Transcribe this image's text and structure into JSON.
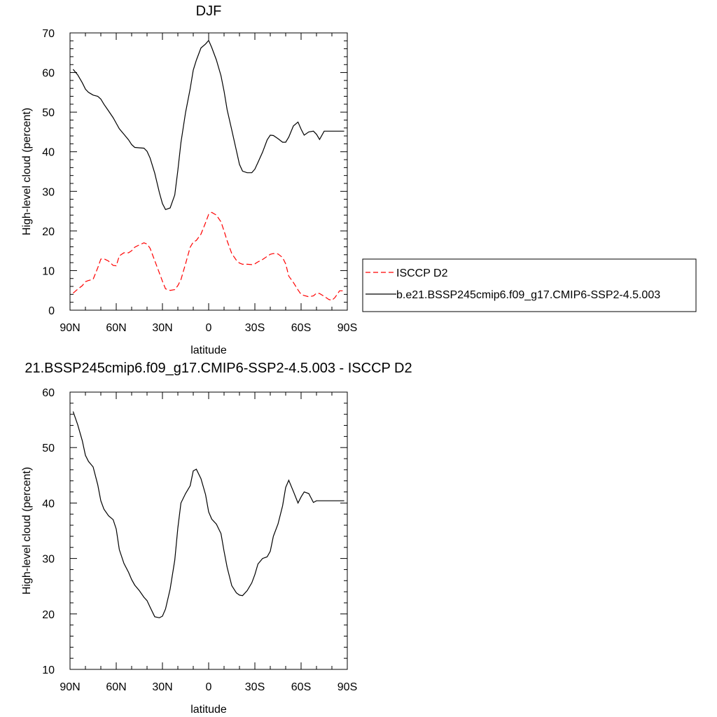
{
  "chart_data": [
    {
      "type": "line",
      "title": "DJF",
      "xlabel": "latitude",
      "ylabel": "High-level cloud (percent)",
      "xlim": [
        -90,
        90
      ],
      "ylim": [
        0,
        70
      ],
      "x_direction": "north-to-south",
      "xticks": [
        {
          "value": -90,
          "label": "90N"
        },
        {
          "value": -60,
          "label": "60N"
        },
        {
          "value": -30,
          "label": "30N"
        },
        {
          "value": 0,
          "label": "0"
        },
        {
          "value": 30,
          "label": "30S"
        },
        {
          "value": 60,
          "label": "60S"
        },
        {
          "value": 90,
          "label": "90S"
        }
      ],
      "yticks": [
        0,
        10,
        20,
        30,
        40,
        50,
        60,
        70
      ],
      "legend_position": "right",
      "series": [
        {
          "name": "ISCCP D2",
          "color": "#ff0000",
          "dash": "dashed",
          "x": [
            -88,
            -85,
            -82,
            -80,
            -78,
            -75,
            -72,
            -70,
            -68,
            -65,
            -62,
            -60,
            -58,
            -55,
            -52,
            -50,
            -48,
            -45,
            -42,
            -40,
            -38,
            -35,
            -32,
            -30,
            -28,
            -25,
            -22,
            -20,
            -18,
            -15,
            -12,
            -10,
            -8,
            -5,
            -2,
            0,
            2,
            5,
            8,
            10,
            12,
            15,
            18,
            20,
            22,
            25,
            28,
            30,
            32,
            35,
            38,
            40,
            42,
            45,
            48,
            50,
            52,
            55,
            58,
            60,
            62,
            65,
            68,
            70,
            72,
            75,
            78,
            80,
            82,
            85,
            88
          ],
          "y": [
            4.3,
            5.3,
            6.2,
            7.2,
            7.5,
            7.8,
            10.7,
            12.9,
            13.0,
            12.4,
            11.3,
            11.2,
            13.7,
            14.5,
            14.5,
            15.0,
            15.9,
            16.5,
            17.0,
            16.7,
            15.6,
            12.5,
            9.4,
            7.3,
            5.4,
            5.0,
            5.2,
            6.2,
            7.7,
            11.7,
            15.9,
            17.2,
            17.6,
            19.2,
            22.1,
            24.2,
            24.7,
            24.0,
            22.3,
            20.0,
            17.5,
            14.3,
            12.6,
            11.9,
            11.6,
            11.6,
            11.5,
            11.7,
            12.2,
            12.8,
            13.6,
            14.1,
            14.3,
            14.2,
            13.3,
            11.7,
            8.6,
            7.0,
            5.1,
            4.0,
            3.7,
            3.4,
            3.6,
            4.3,
            4.2,
            3.5,
            2.7,
            2.5,
            3.2,
            4.9,
            4.9
          ]
        },
        {
          "name": "b.e21.BSSP245cmip6.f09_g17.CMIP6-SSP2-4.5.003",
          "color": "#000000",
          "dash": "solid",
          "x": [
            -88,
            -85,
            -82,
            -80,
            -78,
            -75,
            -72,
            -70,
            -68,
            -65,
            -62,
            -60,
            -58,
            -55,
            -52,
            -50,
            -48,
            -45,
            -42,
            -40,
            -38,
            -35,
            -32,
            -30,
            -28,
            -25,
            -22,
            -20,
            -18,
            -15,
            -12,
            -10,
            -8,
            -5,
            -2,
            0,
            2,
            5,
            8,
            10,
            12,
            15,
            18,
            20,
            22,
            25,
            28,
            30,
            32,
            35,
            38,
            40,
            42,
            45,
            48,
            50,
            52,
            55,
            58,
            60,
            62,
            65,
            68,
            70,
            72,
            75,
            78,
            80,
            82,
            85,
            88
          ],
          "y": [
            60.8,
            59.4,
            57.4,
            55.8,
            55.0,
            54.3,
            54.0,
            53.3,
            52.0,
            50.3,
            48.6,
            47.2,
            45.8,
            44.4,
            43.0,
            41.8,
            41.1,
            41.0,
            40.9,
            40.1,
            38.4,
            34.6,
            29.7,
            26.9,
            25.4,
            25.8,
            29.1,
            35.3,
            42.3,
            49.9,
            55.9,
            60.6,
            63.1,
            66.2,
            67.2,
            68.1,
            66.3,
            63.2,
            59.2,
            55.3,
            50.6,
            45.5,
            40.3,
            36.8,
            35.1,
            34.7,
            34.7,
            35.6,
            37.3,
            39.9,
            43.0,
            44.2,
            44.1,
            43.3,
            42.4,
            42.4,
            43.7,
            46.5,
            47.5,
            45.7,
            44.2,
            45.0,
            45.2,
            44.4,
            43.1,
            45.2,
            45.2,
            45.2,
            45.2,
            45.2,
            45.2
          ]
        }
      ]
    },
    {
      "type": "line",
      "title": "21.BSSP245cmip6.f09_g17.CMIP6-SSP2-4.5.003 - ISCCP D2",
      "xlabel": "latitude",
      "ylabel": "High-level cloud (percent)",
      "xlim": [
        -90,
        90
      ],
      "ylim": [
        10,
        60
      ],
      "x_direction": "north-to-south",
      "xticks": [
        {
          "value": -90,
          "label": "90N"
        },
        {
          "value": -60,
          "label": "60N"
        },
        {
          "value": -30,
          "label": "30N"
        },
        {
          "value": 0,
          "label": "0"
        },
        {
          "value": 30,
          "label": "30S"
        },
        {
          "value": 60,
          "label": "60S"
        },
        {
          "value": 90,
          "label": "90S"
        }
      ],
      "yticks": [
        10,
        20,
        30,
        40,
        50,
        60
      ],
      "series": [
        {
          "color": "#000000",
          "dash": "solid",
          "x": [
            -88,
            -85,
            -82,
            -80,
            -78,
            -75,
            -72,
            -70,
            -68,
            -65,
            -62,
            -60,
            -58,
            -55,
            -52,
            -50,
            -48,
            -45,
            -42,
            -40,
            -38,
            -35,
            -32,
            -30,
            -28,
            -25,
            -22,
            -20,
            -18,
            -15,
            -12,
            -10,
            -8,
            -5,
            -2,
            0,
            2,
            5,
            8,
            10,
            12,
            15,
            18,
            20,
            22,
            25,
            28,
            30,
            32,
            35,
            38,
            40,
            42,
            45,
            48,
            50,
            52,
            55,
            58,
            60,
            62,
            65,
            68,
            70,
            72,
            75,
            78,
            80,
            82,
            85,
            88
          ],
          "y": [
            56.5,
            54.1,
            51.2,
            48.6,
            47.5,
            46.5,
            43.3,
            40.4,
            38.9,
            37.7,
            37.0,
            35.3,
            31.6,
            29.1,
            27.5,
            26.2,
            25.2,
            24.2,
            23.0,
            22.4,
            21.2,
            19.5,
            19.3,
            19.6,
            20.9,
            24.5,
            29.7,
            35.5,
            40.0,
            41.7,
            43.1,
            45.8,
            46.1,
            44.4,
            41.5,
            38.4,
            37.1,
            36.2,
            34.5,
            31.3,
            28.4,
            25.1,
            23.8,
            23.4,
            23.3,
            24.2,
            25.6,
            27.1,
            29.0,
            30.0,
            30.3,
            31.3,
            34.0,
            36.2,
            39.5,
            42.8,
            44.1,
            42.1,
            40.0,
            41.1,
            42.0,
            41.7,
            40.1,
            40.4,
            40.4,
            40.4,
            40.4,
            40.4,
            40.4,
            40.4,
            40.4
          ]
        }
      ]
    }
  ]
}
